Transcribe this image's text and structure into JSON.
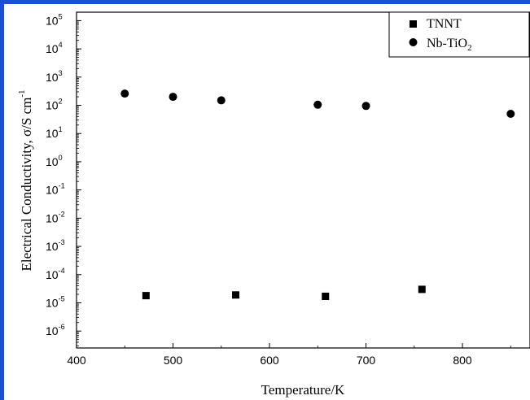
{
  "chart_data": {
    "type": "scatter",
    "xlabel": "Temperature/K",
    "ylabel": "Electrical Conductivity, σ/S cm",
    "ylabel_superscript": "-1",
    "xlim": [
      400,
      870
    ],
    "ylim_log10": [
      -6.6,
      5.3
    ],
    "yscale": "log",
    "grid": false,
    "legend_position": "top-right",
    "x_ticks": [
      400,
      500,
      600,
      700,
      800
    ],
    "x_tick_labels": [
      "400",
      "500",
      "600",
      "700",
      "800"
    ],
    "y_ticks_exp": [
      5,
      4,
      3,
      2,
      1,
      0,
      -1,
      -2,
      -3,
      -4,
      -5,
      -6
    ],
    "y_tick_labels": [
      "10",
      "10",
      "10",
      "10",
      "10",
      "10",
      "10",
      "10",
      "10",
      "10",
      "10",
      "10"
    ],
    "y_tick_exponents": [
      "5",
      "4",
      "3",
      "2",
      "1",
      "0",
      "-1",
      "-2",
      "-3",
      "-4",
      "-5",
      "-6"
    ],
    "series": [
      {
        "name": "TNNT",
        "name_main": "TNNT",
        "name_sub": "",
        "marker": "square",
        "x": [
          472,
          565,
          658,
          758
        ],
        "y": [
          1.8e-05,
          1.9e-05,
          1.7e-05,
          3e-05
        ]
      },
      {
        "name": "Nb-TiO2",
        "name_main": "Nb-TiO",
        "name_sub": "2",
        "marker": "circle",
        "x": [
          450,
          500,
          550,
          650,
          700,
          850
        ],
        "y": [
          260,
          200,
          150,
          105,
          95,
          50
        ]
      }
    ]
  }
}
